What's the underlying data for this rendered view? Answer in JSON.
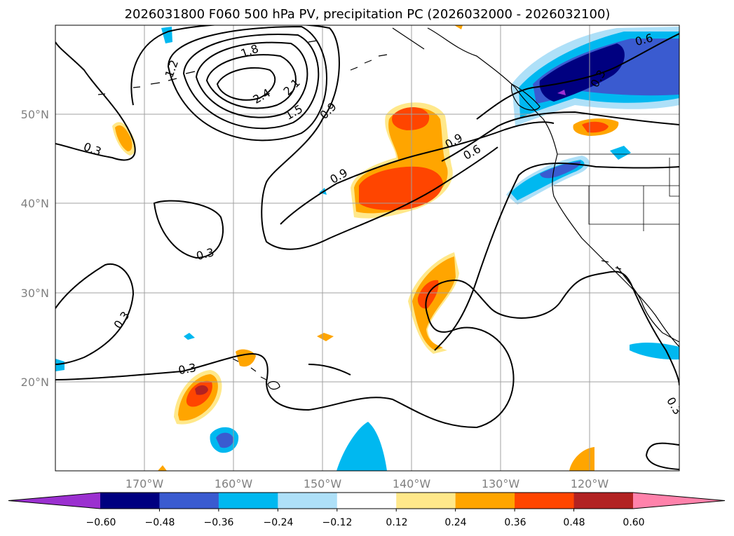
{
  "title": "2026031800 F060 500 hPa PV, precipitation PC (2026032000 - 2026032100)",
  "map": {
    "lon_labels": [
      "170°W",
      "160°W",
      "150°W",
      "140°W",
      "130°W",
      "120°W"
    ],
    "lat_labels": [
      "50°N",
      "40°N",
      "30°N",
      "20°N"
    ],
    "extent": {
      "lon_min": -180,
      "lon_max": -110,
      "lat_min": 10,
      "lat_max": 60
    },
    "contour_labels": [
      "1.8",
      "1.2",
      "2.4",
      "2.1",
      "1.5",
      "0.9",
      "0.3",
      "0.9",
      "0.6",
      "0.9",
      "0.3",
      "0.3",
      "0.3",
      "0.6",
      "0.3",
      "0.3"
    ],
    "contour_level_values": [
      0.3,
      0.6,
      0.9,
      1.2,
      1.5,
      1.8,
      2.1,
      2.4
    ]
  },
  "colorbar": {
    "ticks": [
      "−0.60",
      "−0.48",
      "−0.36",
      "−0.24",
      "−0.12",
      "0.12",
      "0.24",
      "0.36",
      "0.48",
      "0.60"
    ],
    "colors": [
      "#9b30d0",
      "#000080",
      "#3a5bd0",
      "#00b8f0",
      "#aee0f8",
      "#ffffff",
      "#ffe88a",
      "#ffa500",
      "#ff4500",
      "#b22222",
      "#ff82ab"
    ]
  },
  "colors": {
    "land_outline": "#000000",
    "grid": "#a0a0a0",
    "contour": "#000000"
  }
}
